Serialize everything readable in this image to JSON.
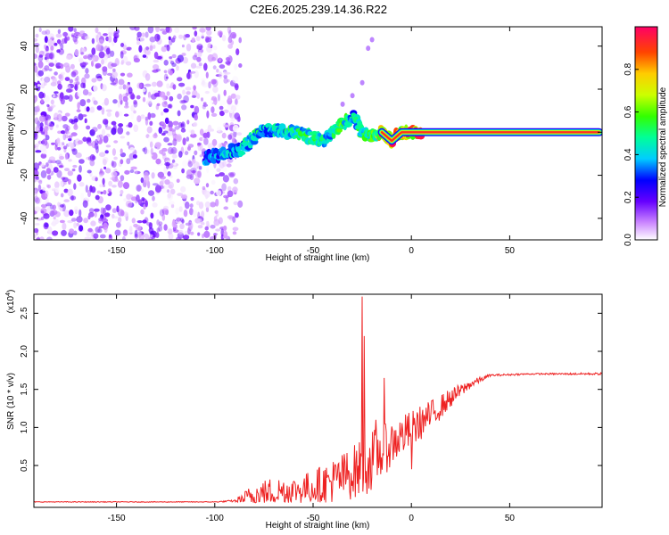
{
  "chart_data": [
    {
      "type": "heatmap",
      "title": "C2E6.2025.239.14.36.R22",
      "xlabel": "Height of straight line (km)",
      "ylabel": "Frequency (Hz)",
      "xlim": [
        -192,
        97
      ],
      "ylim": [
        -50,
        49
      ],
      "xticks": [
        -150,
        -100,
        -50,
        0,
        50
      ],
      "yticks": [
        -40,
        -20,
        0,
        20,
        40
      ],
      "colorbar": {
        "label": "Normalized spectral amplitude",
        "range": [
          0,
          1
        ],
        "ticks": [
          "0.0",
          "0.2",
          "0.4",
          "0.6",
          "0.8"
        ],
        "tick_values": [
          0.0,
          0.2,
          0.4,
          0.6,
          0.8
        ]
      },
      "ridge_trace": {
        "x": [
          -105,
          -95,
          -85,
          -78,
          -70,
          -60,
          -52,
          -45,
          -40,
          -35,
          -30,
          -25,
          -20,
          -15,
          -10,
          -5,
          0,
          5,
          20,
          50,
          95
        ],
        "y": [
          -12,
          -10,
          -7,
          0,
          1,
          0,
          -2,
          -4,
          0,
          4,
          7,
          0,
          -2,
          0,
          -4,
          0,
          0,
          0,
          0,
          0,
          0
        ],
        "amplitude": [
          0.35,
          0.4,
          0.45,
          0.5,
          0.45,
          0.5,
          0.55,
          0.5,
          0.5,
          0.6,
          0.45,
          0.55,
          0.6,
          0.85,
          0.9,
          0.85,
          0.9,
          0.95,
          1.0,
          1.0,
          1.0
        ]
      },
      "noise_region": {
        "x_from": -192,
        "x_to": -95,
        "amplitude_max": 0.2
      }
    },
    {
      "type": "line",
      "title": "",
      "xlabel": "Height of straight line (km)",
      "ylabel": "SNR (10 * v/v)",
      "scale_label": "(x10",
      "scale_exponent": "4",
      "scale_close": ")",
      "xlim": [
        -192,
        97
      ],
      "ylim": [
        -0.05,
        2.75
      ],
      "xticks": [
        -150,
        -100,
        -50,
        0,
        50
      ],
      "yticks": [
        0.5,
        1.0,
        1.5,
        2.0,
        2.5
      ],
      "ytick_labels": [
        "0.5",
        "1.0",
        "1.5",
        "2.0",
        "2.5"
      ],
      "series": [
        {
          "name": "SNR",
          "color": "#ee2222",
          "envelope_x": [
            -192,
            -100,
            -90,
            -80,
            -70,
            -60,
            -50,
            -40,
            -30,
            -25,
            -20,
            -10,
            0,
            10,
            20,
            30,
            40,
            60,
            97
          ],
          "envelope_base": [
            0.02,
            0.02,
            0.03,
            0.05,
            0.1,
            0.12,
            0.15,
            0.2,
            0.3,
            0.35,
            0.45,
            0.7,
            0.9,
            1.1,
            1.35,
            1.55,
            1.68,
            1.7,
            1.7
          ],
          "envelope_amp": [
            0.01,
            0.01,
            0.03,
            0.35,
            0.4,
            0.35,
            0.45,
            0.6,
            0.7,
            0.8,
            0.8,
            0.6,
            0.5,
            0.4,
            0.25,
            0.12,
            0.03,
            0.02,
            0.03
          ],
          "spikes": [
            {
              "x": -25,
              "y": 2.72
            },
            {
              "x": -24,
              "y": 2.2
            },
            {
              "x": -18,
              "y": 1.1
            },
            {
              "x": -14,
              "y": 1.65
            },
            {
              "x": 0,
              "y": 0.45
            }
          ]
        }
      ]
    }
  ]
}
